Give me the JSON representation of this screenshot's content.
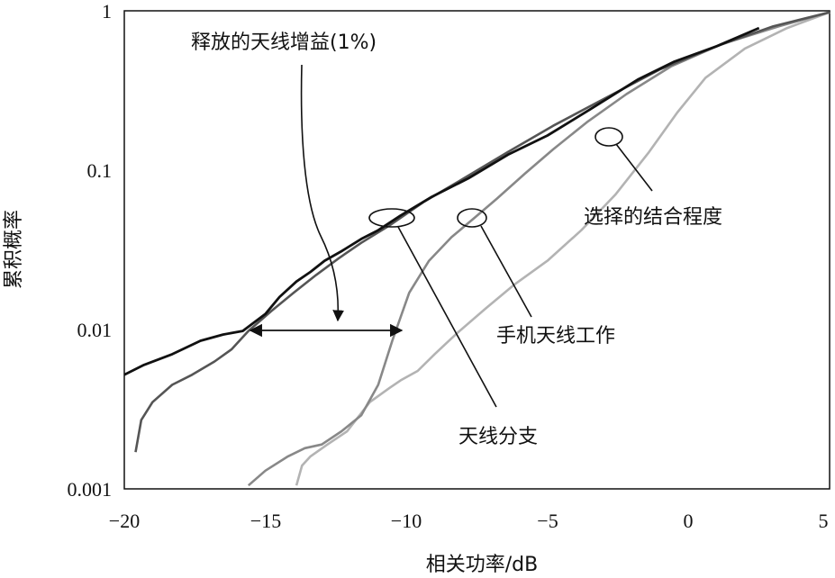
{
  "chart_data": {
    "type": "line",
    "xlabel": "相关功率/dB",
    "ylabel": "累积概率",
    "xlim": [
      -20,
      5
    ],
    "ylim": [
      0.001,
      1
    ],
    "yscale": "log",
    "x_ticks": [
      "−20",
      "−15",
      "−10",
      "−5",
      "0",
      "5"
    ],
    "y_ticks": [
      "0.001",
      "0.01",
      "0.1",
      "1"
    ],
    "grid": false,
    "series": [
      {
        "color": "#111111",
        "x": [
          -20,
          -19.3,
          -18.3,
          -17.3,
          -16.5,
          -15.8,
          -15,
          -14.5,
          -13.9,
          -13.4,
          -12.9,
          -12.3,
          -11.6,
          -11,
          -10.2,
          -9.1,
          -7.8,
          -6.4,
          -5,
          -3.5,
          -1.8,
          -0.5,
          1,
          2.5
        ],
        "y": [
          0.0052,
          0.006,
          0.007,
          0.0085,
          0.0093,
          0.0098,
          0.0125,
          0.016,
          0.02,
          0.023,
          0.027,
          0.031,
          0.037,
          0.042,
          0.052,
          0.068,
          0.089,
          0.125,
          0.165,
          0.24,
          0.37,
          0.48,
          0.6,
          0.78
        ]
      },
      {
        "color": "#555555",
        "x": [
          -19.6,
          -19.4,
          -19,
          -18.3,
          -17.6,
          -16.8,
          -16.2,
          -15.6,
          -14.8,
          -14,
          -13.2,
          -12.4,
          -11.6,
          -10.6,
          -9.4,
          -8,
          -6.4,
          -4.8,
          -3,
          -1,
          1,
          3,
          5
        ],
        "y": [
          0.0017,
          0.0027,
          0.0035,
          0.0045,
          0.0052,
          0.0063,
          0.0075,
          0.0098,
          0.013,
          0.017,
          0.022,
          0.028,
          0.035,
          0.045,
          0.063,
          0.088,
          0.13,
          0.19,
          0.28,
          0.43,
          0.6,
          0.8,
          0.98
        ]
      },
      {
        "color": "#888888",
        "x": [
          -15.6,
          -15,
          -14.2,
          -13.6,
          -13,
          -12.3,
          -11.6,
          -11,
          -10.5,
          -9.9,
          -9.2,
          -8.4,
          -7.6,
          -6.8,
          -5.8,
          -4.8,
          -3.6,
          -2.2,
          -0.6,
          1.2,
          3.2,
          5
        ],
        "y": [
          0.00105,
          0.0013,
          0.0016,
          0.0018,
          0.0019,
          0.0023,
          0.0029,
          0.0045,
          0.0085,
          0.017,
          0.027,
          0.038,
          0.05,
          0.066,
          0.095,
          0.135,
          0.2,
          0.3,
          0.45,
          0.62,
          0.8,
          0.98
        ]
      },
      {
        "color": "#b3b3b3",
        "x": [
          -13.9,
          -13.7,
          -13.4,
          -12.8,
          -12.1,
          -11.3,
          -10.6,
          -10.2,
          -9.6,
          -9,
          -8.2,
          -7.2,
          -6.2,
          -5,
          -3.8,
          -2.6,
          -1.4,
          -0.4,
          0.6,
          2,
          3.5,
          5
        ],
        "y": [
          0.00105,
          0.0014,
          0.0016,
          0.0019,
          0.0023,
          0.0035,
          0.0043,
          0.0048,
          0.0055,
          0.007,
          0.0095,
          0.0135,
          0.019,
          0.027,
          0.042,
          0.07,
          0.13,
          0.23,
          0.38,
          0.58,
          0.78,
          0.98
        ]
      }
    ],
    "annotations": [
      {
        "text": "释放的天线增益(1%)",
        "anchor_x": -12.4,
        "anchor_y": 0.011
      },
      {
        "text": "天线分支",
        "anchor_x": -10.5,
        "anchor_y": 0.052
      },
      {
        "text": "手机天线工作",
        "anchor_x": -7.6,
        "anchor_y": 0.052
      },
      {
        "text": "选择的结合程度",
        "anchor_x": -2.7,
        "anchor_y": 0.16
      }
    ],
    "double_arrow": {
      "x1": -15.5,
      "x2": -10.2,
      "y": 0.0098
    }
  }
}
